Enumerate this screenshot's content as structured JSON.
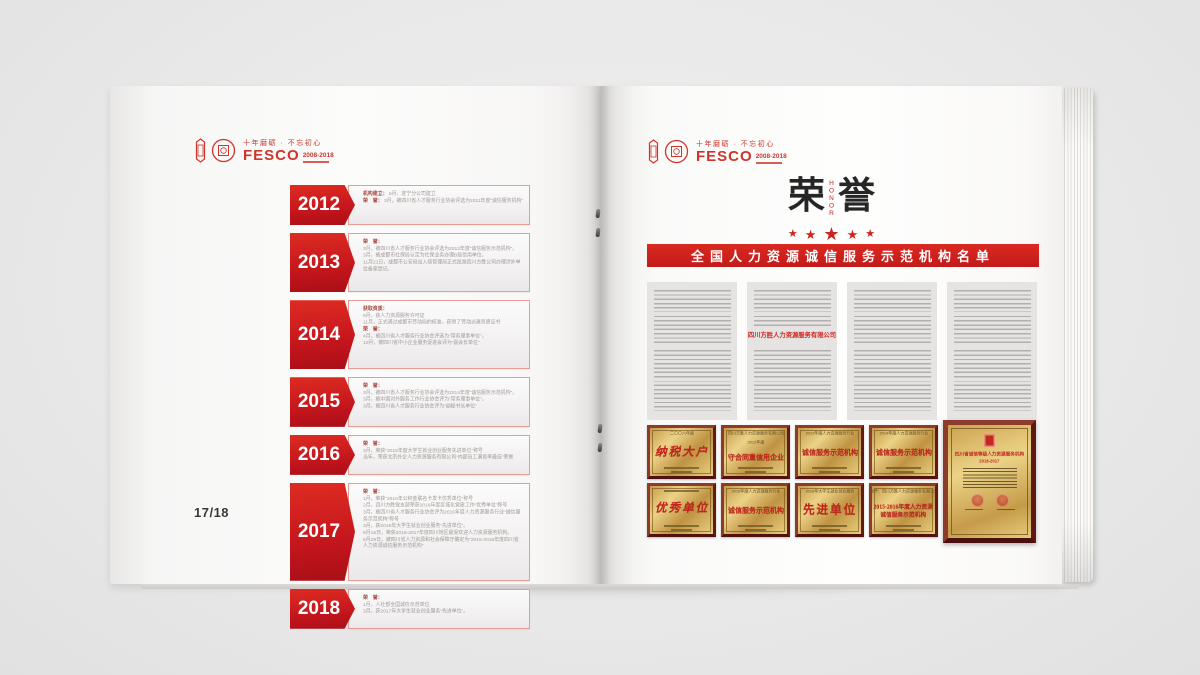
{
  "logo": {
    "tagline": "十年磨砺 · 不忘初心",
    "name": "FESCO",
    "years": "2008-2018"
  },
  "left_page": {
    "page_number": "17/18",
    "timeline": [
      {
        "year": "2012",
        "lines": [
          {
            "label": "机构建立：",
            "text": "6月，遂宁分公司建立"
          },
          {
            "label": "荣　誉：",
            "text": "3月，被四川省人才服务行业协会评选为2011年度“诚信服务机构”"
          }
        ]
      },
      {
        "year": "2013",
        "lines": [
          {
            "label": "荣　誉：",
            "text": ""
          },
          {
            "text": "3月，被四川省人才服务行业协会评选为2012年度“诚信服务示范机构”。"
          },
          {
            "text": "3月，被成都市社保局认定为社保业务办理B级信用单位。"
          },
          {
            "text": "11月21日，成都市公安局出入境管理局正式批准四川方胜公司办理涉外单位备案登记。"
          }
        ]
      },
      {
        "year": "2014",
        "lines": [
          {
            "label": "获取资质：",
            "text": ""
          },
          {
            "text": "9月，获人力资源服务许可证"
          },
          {
            "text": "11月，正式通过成都市劳动局的核准，获得了劳动派遣资质证书"
          },
          {
            "label": "荣　誉：",
            "text": ""
          },
          {
            "text": "4月，被四川省人才服务行业协会评选为“常务理事单位”。"
          },
          {
            "text": "10月，被四川省中小企业服务促进会评为“副会长单位”"
          }
        ]
      },
      {
        "year": "2015",
        "lines": [
          {
            "label": "荣　誉：",
            "text": ""
          },
          {
            "text": "3月，被四川省人才服务行业协会评选为2014年度“诚信服务示范机构”。"
          },
          {
            "text": "3月，被中国对外服务工作行业协会评为“常务理事单位”。"
          },
          {
            "text": "3月，被四川省人才服务行业协会评为“副秘书长单位”"
          }
        ]
      },
      {
        "year": "2016",
        "lines": [
          {
            "label": "荣　誉：",
            "text": ""
          },
          {
            "text": "3月，荣获“2015年度大学生就业创业服务先进单位”称号"
          },
          {
            "text": "当年，荣获北京外企人力资源服务有限公司“内部员工满意率最佳”荣誉"
          }
        ]
      },
      {
        "year": "2017",
        "lines": [
          {
            "label": "荣　誉：",
            "text": ""
          },
          {
            "text": "1月，荣获“2016年公积金联名卡发卡优秀单位”称号"
          },
          {
            "text": "2月，四川方胜党支部荣获2016年度区域化党建工作“优秀单位”称号"
          },
          {
            "text": "3月，被四川省人才服务行业协会评为2016年度人力资源服务行业“诚信服务示范机构”称号"
          },
          {
            "text": "3月，获2016年大学生就业创业服务“先进单位”。"
          },
          {
            "text": "6月16日，荣获2016-2017年度四川地区最受欢迎人力资源服务机构。"
          },
          {
            "text": "6月29日，被四川省人力资源和社会保障厅确定为“2015-2016年度四川省人力资源诚信服务示范机构”"
          }
        ]
      },
      {
        "year": "2018",
        "lines": [
          {
            "label": "荣　誉：",
            "text": ""
          },
          {
            "text": "1月，人社部全国诚信示范单位"
          },
          {
            "text": "3月，获2017年大学生就业创业服务“先进单位”。"
          }
        ]
      }
    ]
  },
  "right_page": {
    "title_left": "荣",
    "title_right": "誉",
    "title_side": "HONOR",
    "star_glyph": "★",
    "banner": "全国人力资源诚信服务示范机构名单",
    "highlight_company": "四川方胜人力资源服务有限公司",
    "plaques": [
      {
        "top": "二〇〇六年度",
        "main": "纳税大户",
        "big": true,
        "script": true
      },
      {
        "top": "四川方胜人力资源服务有限公司",
        "top2": "2012年度",
        "main": "守合同重信用企业"
      },
      {
        "top": "2012年度人力资源服务行业",
        "main": "诚信服务示范机构"
      },
      {
        "top": "2014年度人力资源服务行业",
        "main": "诚信服务示范机构"
      },
      {
        "top": "",
        "main": "优秀单位",
        "big": true,
        "script": true
      },
      {
        "top": "2016年度人力资源服务行业",
        "main": "诚信服务示范机构"
      },
      {
        "top": "2016年大学生就业创业服务",
        "main": "先进单位",
        "big": true
      },
      {
        "top": "授予：四川方胜人力资源服务有限公司",
        "main": "2015-2016年度人力资源",
        "main2": "诚信服务示范机构",
        "small_main": true
      }
    ],
    "big_plaque": {
      "title": "四川省诚信等级人力资源服务机构",
      "subtitle": "2016-2017"
    }
  }
}
